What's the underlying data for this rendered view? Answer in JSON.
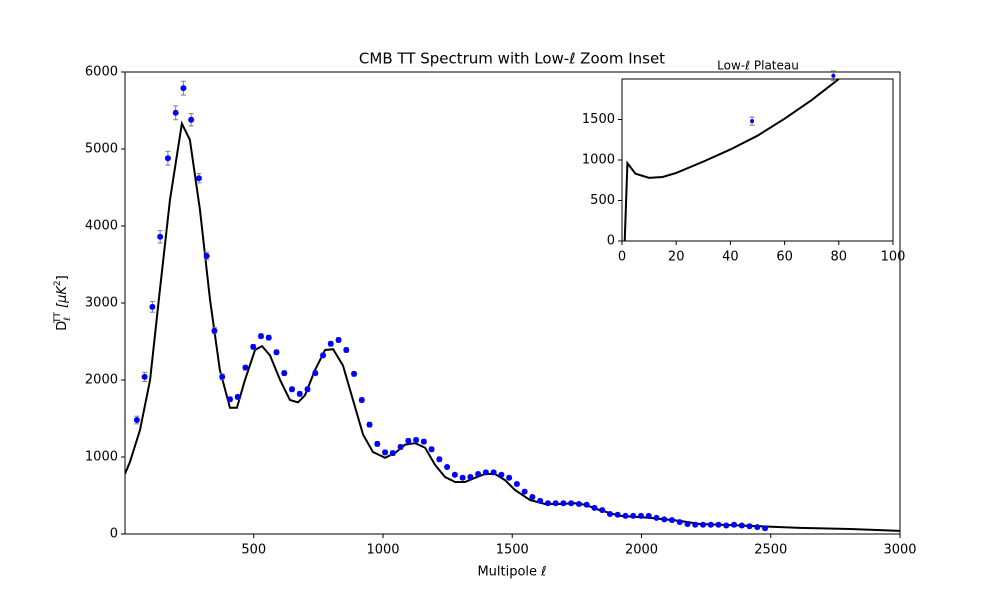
{
  "chart_data": [
    {
      "type": "scatter",
      "title": "CMB TT Spectrum with Low-ℓ Zoom Inset",
      "x_label": "Multipole ℓ",
      "y_label": [
        "D",
        "ℓ",
        "TT",
        " [μK",
        "2",
        "]"
      ],
      "xlim": [
        2,
        3000
      ],
      "ylim": [
        0,
        6000
      ],
      "xticks": [
        500,
        1000,
        1500,
        2000,
        2500,
        3000
      ],
      "yticks": [
        0,
        1000,
        2000,
        3000,
        4000,
        5000,
        6000
      ],
      "points": {
        "color": "#0000ff",
        "error_color": "#808080",
        "x": [
          48,
          78,
          108,
          138,
          168,
          198,
          228,
          258,
          288,
          318,
          348,
          378,
          408,
          438,
          468,
          498,
          528,
          558,
          588,
          618,
          648,
          678,
          708,
          738,
          768,
          798,
          828,
          858,
          888,
          918,
          948,
          978,
          1008,
          1038,
          1068,
          1098,
          1128,
          1158,
          1188,
          1218,
          1248,
          1278,
          1308,
          1338,
          1368,
          1398,
          1428,
          1458,
          1488,
          1518,
          1548,
          1578,
          1608,
          1638,
          1668,
          1698,
          1728,
          1758,
          1788,
          1818,
          1848,
          1878,
          1908,
          1938,
          1968,
          1998,
          2028,
          2058,
          2088,
          2118,
          2148,
          2178,
          2208,
          2238,
          2268,
          2298,
          2328,
          2358,
          2388,
          2418,
          2448,
          2478
        ],
        "values": [
          1480,
          2040,
          2950,
          3860,
          4880,
          5470,
          5790,
          5380,
          4620,
          3610,
          2640,
          2040,
          1750,
          1780,
          2160,
          2430,
          2570,
          2550,
          2360,
          2090,
          1880,
          1820,
          1880,
          2090,
          2320,
          2470,
          2520,
          2390,
          2080,
          1740,
          1420,
          1170,
          1060,
          1050,
          1130,
          1210,
          1220,
          1200,
          1100,
          970,
          870,
          770,
          730,
          740,
          780,
          800,
          800,
          770,
          730,
          650,
          550,
          480,
          430,
          400,
          400,
          400,
          400,
          390,
          380,
          340,
          310,
          260,
          250,
          235,
          235,
          235,
          235,
          210,
          190,
          180,
          155,
          130,
          120,
          120,
          120,
          120,
          110,
          120,
          110,
          100,
          90,
          75
        ],
        "errors": [
          50,
          60,
          70,
          80,
          90,
          90,
          90,
          80,
          60,
          50,
          40,
          40,
          30,
          30,
          30,
          30,
          30,
          30,
          30,
          30,
          30,
          30,
          30,
          30,
          30,
          30,
          30,
          30,
          30,
          30,
          30,
          30,
          30,
          30,
          30,
          30,
          30,
          30,
          30,
          30,
          20,
          20,
          20,
          20,
          20,
          20,
          20,
          20,
          20,
          20,
          20,
          20,
          20,
          20,
          20,
          20,
          20,
          20,
          20,
          20,
          20,
          20,
          20,
          20,
          20,
          20,
          20,
          20,
          20,
          20,
          20,
          20,
          20,
          20,
          20,
          20,
          20,
          20,
          20,
          20,
          20,
          20
        ]
      },
      "curve": {
        "color": "#000000",
        "x": [
          2,
          21,
          60,
          99,
          137,
          176,
          222,
          253,
          292,
          331,
          369,
          408,
          435,
          466,
          505,
          532,
          563,
          602,
          640,
          671,
          698,
          737,
          776,
          807,
          845,
          884,
          923,
          961,
          1008,
          1046,
          1085,
          1124,
          1163,
          1201,
          1240,
          1279,
          1317,
          1356,
          1395,
          1433,
          1472,
          1511,
          1569,
          1627,
          1685,
          1743,
          1782,
          1839,
          1917,
          2033,
          2149,
          2226,
          2420,
          2613,
          2807,
          3000
        ],
        "values": [
          780,
          935,
          1350,
          2000,
          3170,
          4340,
          5330,
          5120,
          4210,
          3040,
          2130,
          1640,
          1640,
          2000,
          2390,
          2440,
          2320,
          2000,
          1740,
          1710,
          1800,
          2130,
          2390,
          2400,
          2190,
          1740,
          1290,
          1065,
          990,
          1050,
          1160,
          1180,
          1120,
          900,
          740,
          675,
          675,
          730,
          780,
          780,
          700,
          570,
          440,
          390,
          390,
          400,
          380,
          310,
          235,
          210,
          170,
          130,
          105,
          80,
          65,
          40
        ]
      }
    },
    {
      "type": "inset",
      "title": "Low-ℓ Plateau",
      "xlim": [
        0,
        100
      ],
      "ylim": [
        0,
        2000
      ],
      "xticks": [
        0,
        20,
        40,
        60,
        80,
        100
      ],
      "yticks": [
        0,
        500,
        1000,
        1500
      ],
      "curve": {
        "color": "#000000",
        "x": [
          1,
          2,
          5,
          10,
          15,
          20,
          30,
          40,
          50,
          60,
          70,
          80
        ],
        "values": [
          0,
          960,
          830,
          780,
          790,
          840,
          980,
          1130,
          1300,
          1510,
          1740,
          2000
        ]
      }
    }
  ]
}
